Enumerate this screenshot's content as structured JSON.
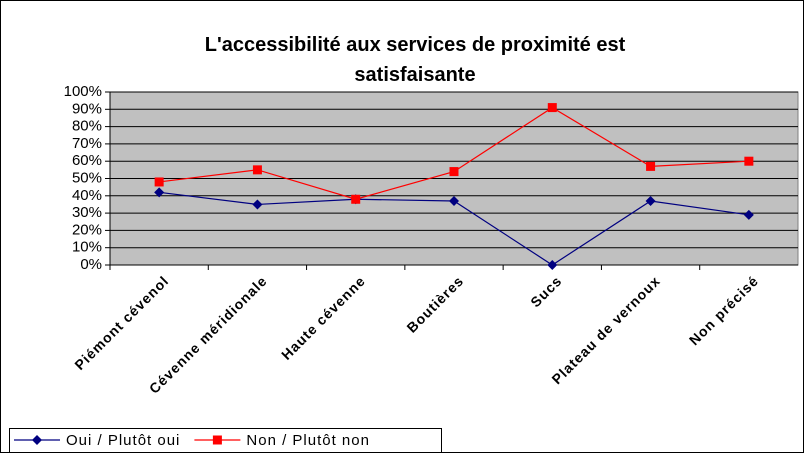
{
  "chart_data": {
    "type": "line",
    "title": "L'accessibilité aux services de proximité est satisfaisante",
    "categories": [
      "Piémont cévenol",
      "Cévenne méridionale",
      "Haute cévenne",
      "Boutières",
      "Sucs",
      "Plateau de vernoux",
      "Non précisé"
    ],
    "series": [
      {
        "name": "Oui / Plutôt oui",
        "color": "#000080",
        "marker": "diamond",
        "values": [
          42,
          35,
          38,
          37,
          0,
          37,
          29
        ]
      },
      {
        "name": "Non / Plutôt non",
        "color": "#ff0000",
        "marker": "square",
        "values": [
          48,
          55,
          38,
          54,
          91,
          57,
          60
        ]
      }
    ],
    "ylim": [
      0,
      100
    ],
    "yticks": [
      {
        "value": 0,
        "label": "0%"
      },
      {
        "value": 10,
        "label": "10%"
      },
      {
        "value": 20,
        "label": "20%"
      },
      {
        "value": 30,
        "label": "30%"
      },
      {
        "value": 40,
        "label": "40%"
      },
      {
        "value": 50,
        "label": "50%"
      },
      {
        "value": 60,
        "label": "60%"
      },
      {
        "value": 70,
        "label": "70%"
      },
      {
        "value": 80,
        "label": "80%"
      },
      {
        "value": 90,
        "label": "90%"
      },
      {
        "value": 100,
        "label": "100%"
      }
    ],
    "grid": true,
    "plot_background": "#c0c0c0",
    "legend": "bottom-left"
  }
}
